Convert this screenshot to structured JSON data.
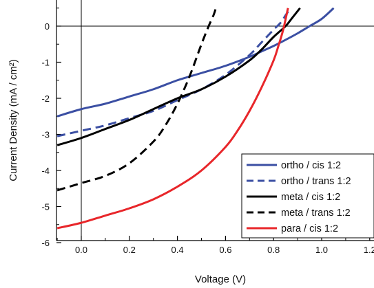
{
  "chart_data": {
    "type": "line",
    "xlabel": "Voltage (V)",
    "ylabel": "Current Density (mA / cm²)",
    "xlim": [
      -0.1,
      1.2
    ],
    "ylim": [
      -6,
      0.5
    ],
    "x_ticks": [
      0.0,
      0.2,
      0.4,
      0.6,
      0.8,
      1.0,
      1.2
    ],
    "x_tick_labels": [
      "0.0",
      "0.2",
      "0.4",
      "0.6",
      "0.8",
      "1.0",
      "1.2"
    ],
    "y_ticks": [
      0,
      -1,
      -2,
      -3,
      -4,
      -5,
      -6
    ],
    "y_tick_labels": [
      "0",
      "-1",
      "-2",
      "-3",
      "-4",
      "-5",
      "-6"
    ],
    "zero_lines": true,
    "grid": false,
    "legend_position": "bottom-right",
    "series": [
      {
        "name": "ortho / cis 1:2",
        "color": "#3b4fa3",
        "dash": "solid",
        "x": [
          -0.1,
          0.0,
          0.1,
          0.2,
          0.3,
          0.4,
          0.5,
          0.6,
          0.7,
          0.75,
          0.8,
          0.85,
          0.9,
          0.95,
          1.0,
          1.05
        ],
        "y": [
          -2.5,
          -2.3,
          -2.15,
          -1.95,
          -1.75,
          -1.5,
          -1.3,
          -1.1,
          -0.85,
          -0.7,
          -0.55,
          -0.38,
          -0.2,
          0.0,
          0.2,
          0.5
        ]
      },
      {
        "name": "ortho / trans 1:2",
        "color": "#3b4fa3",
        "dash": "dashed",
        "x": [
          -0.1,
          0.0,
          0.1,
          0.2,
          0.3,
          0.4,
          0.5,
          0.6,
          0.7,
          0.75,
          0.8,
          0.83,
          0.85,
          0.87
        ],
        "y": [
          -3.05,
          -2.9,
          -2.75,
          -2.55,
          -2.35,
          -2.05,
          -1.75,
          -1.35,
          -0.8,
          -0.45,
          -0.1,
          0.1,
          0.3,
          0.5
        ]
      },
      {
        "name": "meta / cis 1:2",
        "color": "#000000",
        "dash": "solid",
        "x": [
          -0.1,
          0.0,
          0.1,
          0.2,
          0.3,
          0.4,
          0.5,
          0.6,
          0.7,
          0.75,
          0.8,
          0.85,
          0.88,
          0.91
        ],
        "y": [
          -3.3,
          -3.1,
          -2.85,
          -2.6,
          -2.3,
          -2.0,
          -1.75,
          -1.4,
          -0.95,
          -0.65,
          -0.3,
          0.0,
          0.25,
          0.5
        ]
      },
      {
        "name": "meta / trans 1:2",
        "color": "#000000",
        "dash": "dashed",
        "x": [
          -0.1,
          0.0,
          0.1,
          0.2,
          0.3,
          0.35,
          0.4,
          0.45,
          0.5,
          0.53,
          0.55,
          0.56
        ],
        "y": [
          -4.55,
          -4.35,
          -4.15,
          -3.8,
          -3.2,
          -2.75,
          -2.15,
          -1.4,
          -0.5,
          0.0,
          0.3,
          0.5
        ]
      },
      {
        "name": "para / cis 1:2",
        "color": "#e8262a",
        "dash": "solid",
        "x": [
          -0.1,
          0.0,
          0.1,
          0.2,
          0.3,
          0.4,
          0.5,
          0.6,
          0.65,
          0.7,
          0.75,
          0.8,
          0.82,
          0.84,
          0.86
        ],
        "y": [
          -5.6,
          -5.45,
          -5.25,
          -5.05,
          -4.8,
          -4.45,
          -4.0,
          -3.35,
          -2.9,
          -2.35,
          -1.7,
          -0.95,
          -0.55,
          -0.1,
          0.5
        ]
      }
    ]
  }
}
